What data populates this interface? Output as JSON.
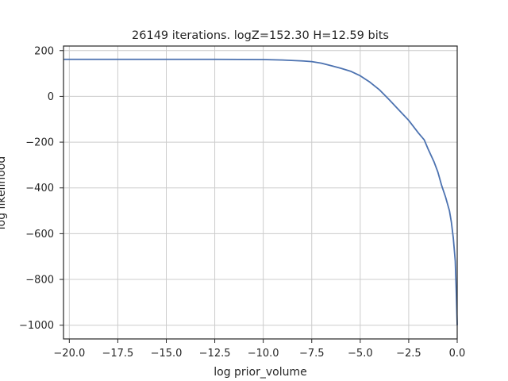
{
  "chart_data": {
    "type": "line",
    "title": "26149 iterations. logZ=152.30 H=12.59 bits",
    "xlabel": "log prior_volume",
    "ylabel": "log likelihood",
    "xlim": [
      -20.3,
      0.0
    ],
    "ylim": [
      -1060,
      220
    ],
    "xticks": [
      -20.0,
      -17.5,
      -15.0,
      -12.5,
      -10.0,
      -7.5,
      -5.0,
      -2.5,
      0.0
    ],
    "xtick_labels": [
      "−20.0",
      "−17.5",
      "−15.0",
      "−12.5",
      "−10.0",
      "−7.5",
      "−5.0",
      "−2.5",
      "0.0"
    ],
    "yticks": [
      200,
      0,
      -200,
      -400,
      -600,
      -800,
      -1000
    ],
    "ytick_labels": [
      "200",
      "0",
      "−200",
      "−400",
      "−600",
      "−800",
      "−1000"
    ],
    "grid": true,
    "series": [
      {
        "color": "#4c72b0",
        "x": [
          -20.3,
          -17.5,
          -15.0,
          -12.5,
          -10.0,
          -9.0,
          -8.0,
          -7.5,
          -7.0,
          -6.5,
          -6.0,
          -5.5,
          -5.0,
          -4.5,
          -4.0,
          -3.5,
          -3.0,
          -2.5,
          -2.0,
          -1.7,
          -1.5,
          -1.2,
          -1.0,
          -0.8,
          -0.6,
          -0.4,
          -0.3,
          -0.2,
          -0.1,
          -0.05,
          0.0
        ],
        "y": [
          162,
          162,
          162,
          162,
          161,
          159,
          155,
          152,
          145,
          134,
          123,
          110,
          90,
          62,
          28,
          -15,
          -60,
          -105,
          -160,
          -190,
          -230,
          -285,
          -330,
          -390,
          -440,
          -500,
          -550,
          -620,
          -720,
          -850,
          -1000
        ]
      }
    ]
  }
}
